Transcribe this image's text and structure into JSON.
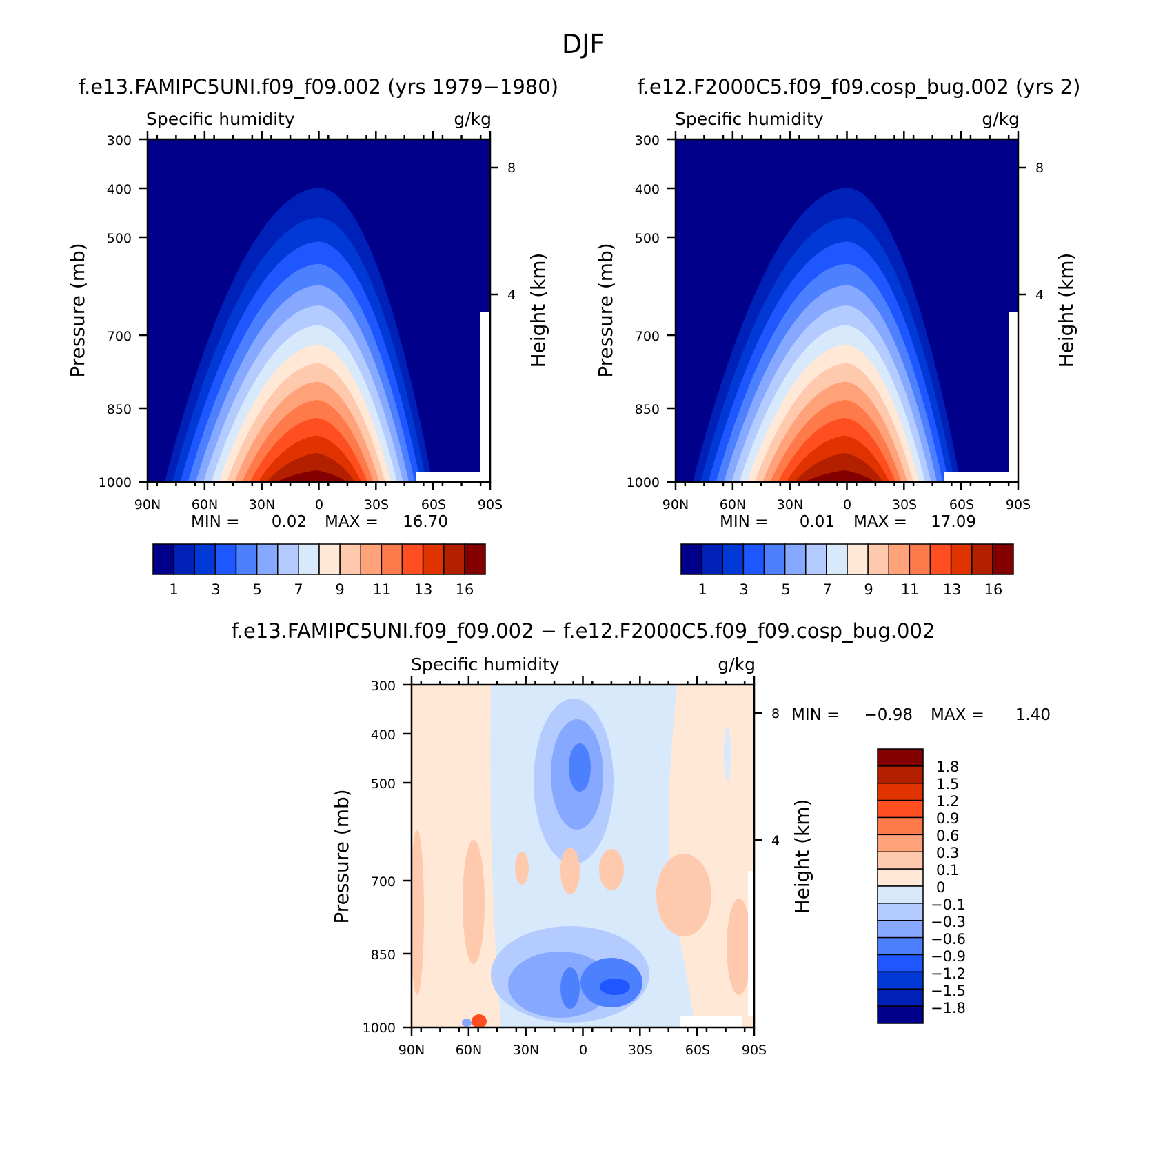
{
  "figure_title": "DJF",
  "chart_data": [
    {
      "type": "contour",
      "title": "f.e13.FAMIPC5UNI.f09_f09.002 (yrs 1979-1980)",
      "left_label": "Specific humidity",
      "right_label": "g/kg",
      "ylabel": "Pressure (mb)",
      "y2label": "Height (km)",
      "x_ticks": [
        "90N",
        "60N",
        "30N",
        "0",
        "30S",
        "60S",
        "90S"
      ],
      "y_ticks": [
        "300",
        "400",
        "500",
        "700",
        "850",
        "1000"
      ],
      "y2_ticks": [
        "8",
        "4"
      ],
      "ylim": [
        1000,
        300
      ],
      "xlim": [
        "90N",
        "90S"
      ],
      "min_text": "MIN =",
      "min_value": "0.02",
      "max_text": "MAX =",
      "max_value": "16.70",
      "colorbar_labels": [
        "1",
        "3",
        "5",
        "7",
        "9",
        "11",
        "13",
        "16"
      ],
      "peak_latitude": 0,
      "peak_value": 16.7
    },
    {
      "type": "contour",
      "title": "f.e12.F2000C5.f09_f09.cosp_bug.002 (yrs 2)",
      "left_label": "Specific humidity",
      "right_label": "g/kg",
      "ylabel": "Pressure (mb)",
      "y2label": "Height (km)",
      "x_ticks": [
        "90N",
        "60N",
        "30N",
        "0",
        "30S",
        "60S",
        "90S"
      ],
      "y_ticks": [
        "300",
        "400",
        "500",
        "700",
        "850",
        "1000"
      ],
      "y2_ticks": [
        "8",
        "4"
      ],
      "ylim": [
        1000,
        300
      ],
      "xlim": [
        "90N",
        "90S"
      ],
      "min_text": "MIN =",
      "min_value": "0.01",
      "max_text": "MAX =",
      "max_value": "17.09",
      "colorbar_labels": [
        "1",
        "3",
        "5",
        "7",
        "9",
        "11",
        "13",
        "16"
      ],
      "peak_latitude": 0,
      "peak_value": 17.09
    },
    {
      "type": "contour",
      "title": "f.e13.FAMIPC5UNI.f09_f09.002 - f.e12.F2000C5.f09_f09.cosp_bug.002",
      "left_label": "Specific humidity",
      "right_label": "g/kg",
      "ylabel": "Pressure (mb)",
      "y2label": "Height (km)",
      "x_ticks": [
        "90N",
        "60N",
        "30N",
        "0",
        "30S",
        "60S",
        "90S"
      ],
      "y_ticks": [
        "300",
        "400",
        "500",
        "700",
        "850",
        "1000"
      ],
      "y2_ticks": [
        "8",
        "4"
      ],
      "ylim": [
        1000,
        300
      ],
      "xlim": [
        "90N",
        "90S"
      ],
      "min_text": "MIN =",
      "min_value": "-0.98",
      "max_text": "MAX =",
      "max_value": "1.40",
      "colorbar_labels": [
        "1.8",
        "1.5",
        "1.2",
        "0.9",
        "0.6",
        "0.3",
        "0.1",
        "0",
        "-0.1",
        "-0.3",
        "-0.6",
        "-0.9",
        "-1.2",
        "-1.5",
        "-1.8"
      ]
    }
  ],
  "colors": {
    "abs_levels": [
      "#00008a",
      "#0021b8",
      "#0039d6",
      "#1e57ff",
      "#4d80ff",
      "#86a8ff",
      "#b3cbff",
      "#d8e9fb",
      "#ffe8d6",
      "#ffc9ad",
      "#ffa27a",
      "#ff7a4b",
      "#ff4f20",
      "#e03300",
      "#b22000",
      "#820000"
    ],
    "diff_levels": [
      "#00008a",
      "#0021b8",
      "#0039d6",
      "#1e57ff",
      "#4d80ff",
      "#86a8ff",
      "#b3cbff",
      "#d8e9fb",
      "#ffe8d6",
      "#ffc9ad",
      "#ffa27a",
      "#ff7a4b",
      "#ff4f20",
      "#e03300",
      "#b22000",
      "#820000"
    ]
  }
}
